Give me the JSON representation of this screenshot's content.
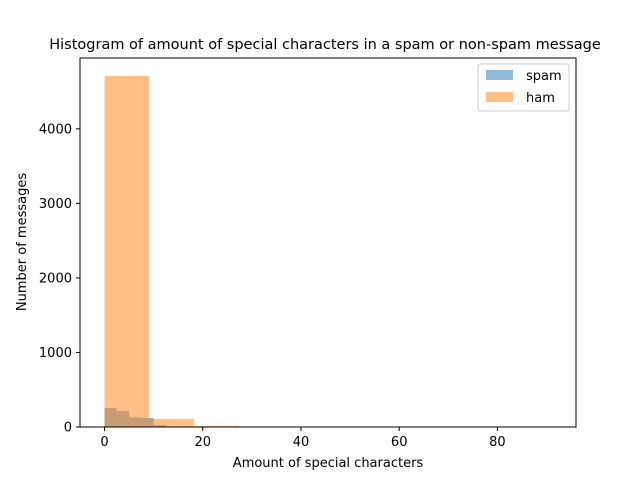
{
  "chart_data": {
    "type": "histogram",
    "title": "Histogram of amount of special characters in a spam or non-spam message",
    "xlabel": "Amount of special characters",
    "ylabel": "Number of messages",
    "xlim": [
      -5,
      96
    ],
    "ylim": [
      0,
      4950
    ],
    "xticks": [
      0,
      20,
      40,
      60,
      80
    ],
    "yticks": [
      0,
      1000,
      2000,
      3000,
      4000
    ],
    "grid": false,
    "legend_position": "top-right",
    "series": [
      {
        "name": "spam",
        "color": "#1f77b4",
        "alpha": 0.5,
        "bin_edges": [
          0,
          2.5,
          5,
          7.5,
          10,
          12.5,
          15,
          17.5,
          20,
          22.5,
          25
        ],
        "counts": [
          255,
          215,
          130,
          120,
          25,
          5,
          0,
          0,
          0,
          0
        ]
      },
      {
        "name": "ham",
        "color": "#ff7f0e",
        "alpha": 0.5,
        "bin_edges": [
          0,
          9.1,
          18.2,
          27.3,
          36.4,
          45.5,
          54.6,
          63.7,
          72.8,
          81.9,
          91
        ],
        "counts": [
          4710,
          110,
          15,
          3,
          0,
          0,
          0,
          0,
          0,
          1
        ]
      }
    ]
  }
}
